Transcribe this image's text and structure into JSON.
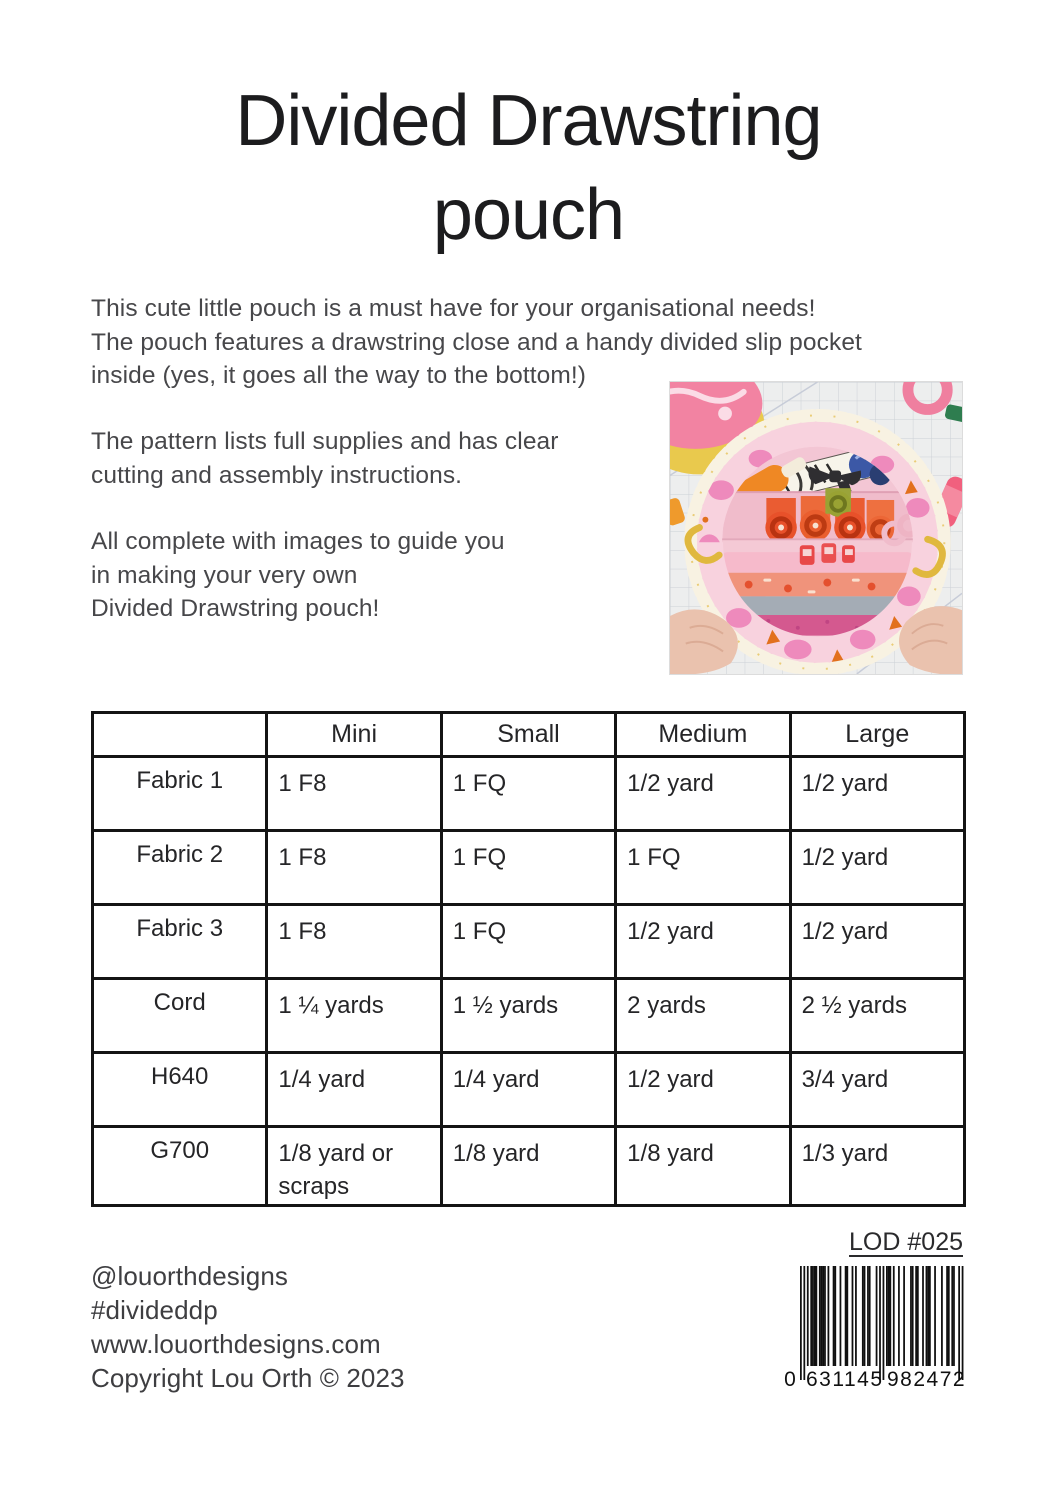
{
  "title": {
    "line1": "Divided Drawstring",
    "line2": "pouch"
  },
  "paragraphs": {
    "intro": "This cute little pouch is a must have for your organisational needs!\nThe pouch features a drawstring close and a handy divided slip pocket\ninside (yes, it goes all the way to the bottom!)",
    "supplies": "The pattern lists full supplies and has clear\ncutting and assembly instructions.",
    "images": "All complete with images to guide you\nin making your very own\nDivided Drawstring pouch!"
  },
  "table": {
    "col_headers": [
      "",
      "Mini",
      "Small",
      "Medium",
      "Large"
    ],
    "rows": [
      {
        "label": "Fabric 1",
        "values": [
          "1 F8",
          "1 FQ",
          "1/2 yard",
          "1/2 yard"
        ]
      },
      {
        "label": "Fabric 2",
        "values": [
          "1 F8",
          "1 FQ",
          "1 FQ",
          "1/2 yard"
        ]
      },
      {
        "label": "Fabric 3",
        "values": [
          "1 F8",
          "1 FQ",
          "1/2 yard",
          "1/2 yard"
        ]
      },
      {
        "label": "Cord",
        "values": [
          "1 ¼ yards",
          "1 ½ yards",
          "2 yards",
          "2 ½ yards"
        ]
      },
      {
        "label": "H640",
        "values": [
          "1/4 yard",
          "1/4 yard",
          "1/2 yard",
          "3/4 yard"
        ]
      },
      {
        "label": "G700",
        "values": [
          "1/8 yard or scraps",
          "1/8 yard",
          "1/8 yard",
          "1/3 yard"
        ]
      }
    ]
  },
  "footer": {
    "pattern_number": "LOD #025",
    "social_handle": "@louorthdesigns",
    "hashtag": "#divideddp",
    "website": "www.louorthdesigns.com",
    "copyright": "Copyright Lou Orth © 2023",
    "barcode": {
      "value": "0631145982472",
      "lead_digit": "0",
      "left_group": "631145",
      "right_group": "982472"
    }
  },
  "colors": {
    "text": "#47474a",
    "table_border": "#141414",
    "pouch_pink": "#f8d2de"
  }
}
